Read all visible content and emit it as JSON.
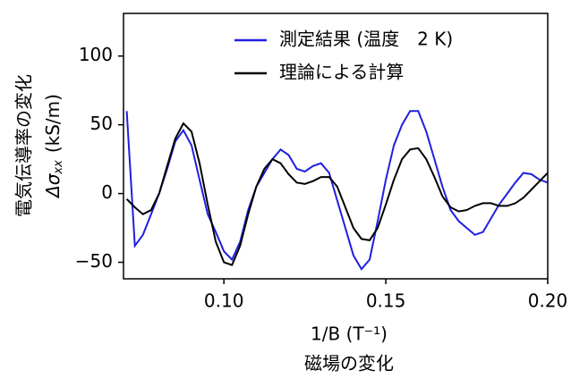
{
  "chart_data": {
    "type": "line",
    "y_label_line1": "電気伝導率の変化",
    "y_label_symbol": "Δσ",
    "y_label_subscript": "xx",
    "y_label_unit": "(kS/m)",
    "x_label": "1/B (T⁻¹)",
    "x_label_line2": "磁場の変化",
    "x": [
      0.07,
      0.0725,
      0.075,
      0.0775,
      0.08,
      0.0825,
      0.085,
      0.0875,
      0.09,
      0.0925,
      0.095,
      0.0975,
      0.1,
      0.1025,
      0.105,
      0.1075,
      0.11,
      0.1125,
      0.115,
      0.1175,
      0.12,
      0.1225,
      0.125,
      0.1275,
      0.13,
      0.1325,
      0.135,
      0.1375,
      0.14,
      0.1425,
      0.145,
      0.1475,
      0.15,
      0.1525,
      0.155,
      0.1575,
      0.16,
      0.1625,
      0.165,
      0.1675,
      0.17,
      0.1725,
      0.175,
      0.1775,
      0.18,
      0.1825,
      0.185,
      0.1875,
      0.19,
      0.1925,
      0.195,
      0.1975,
      0.2
    ],
    "series": [
      {
        "name": "測定結果 (温度　2 K)",
        "color": "#1f1fe0",
        "values": [
          60,
          -38,
          -30,
          -15,
          0,
          18,
          38,
          46,
          35,
          10,
          -15,
          -28,
          -42,
          -48,
          -35,
          -12,
          5,
          15,
          25,
          32,
          28,
          18,
          16,
          20,
          22,
          15,
          -5,
          -25,
          -45,
          -55,
          -48,
          -20,
          10,
          35,
          50,
          60,
          60,
          45,
          25,
          5,
          -12,
          -20,
          -25,
          -30,
          -28,
          -18,
          -8,
          0,
          8,
          15,
          14,
          10,
          8
        ]
      },
      {
        "name": "理論による計算",
        "color": "#000000",
        "values": [
          -4,
          -10,
          -15,
          -12,
          0,
          20,
          40,
          51,
          45,
          22,
          -8,
          -35,
          -50,
          -52,
          -38,
          -15,
          5,
          18,
          25,
          22,
          14,
          8,
          7,
          9,
          12,
          12,
          5,
          -10,
          -25,
          -33,
          -34,
          -25,
          -8,
          10,
          25,
          32,
          33,
          25,
          12,
          -2,
          -10,
          -13,
          -12,
          -9,
          -7,
          -7,
          -9,
          -9,
          -7,
          -3,
          3,
          9,
          15
        ]
      }
    ],
    "xlim": [
      0.069,
      0.2
    ],
    "ylim": [
      -62,
      131
    ],
    "xticks": [
      {
        "value": 0.1,
        "label": "0.10"
      },
      {
        "value": 0.15,
        "label": "0.15"
      },
      {
        "value": 0.2,
        "label": "0.20"
      }
    ],
    "yticks": [
      {
        "value": -50,
        "label": "−50"
      },
      0,
      50,
      100
    ],
    "legend": "upper center"
  }
}
